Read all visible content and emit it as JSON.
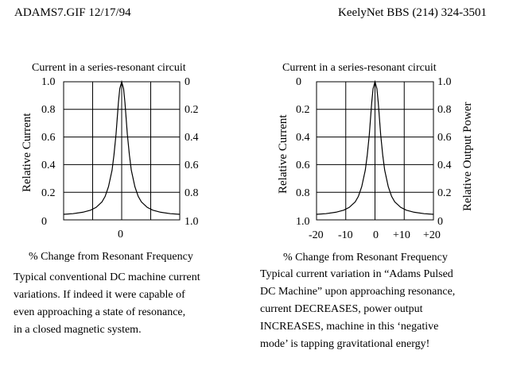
{
  "header": {
    "left": "ADAMS7.GIF  12/17/94",
    "right": "KeelyNet BBS (214) 324-3501"
  },
  "chart_data": [
    {
      "type": "line",
      "title": "Current in a series-resonant circuit",
      "xlabel": "% Change from Resonant Frequency",
      "ylabel": "Relative Current",
      "y_ticks_left": [
        "1.0",
        "0.8",
        "0.6",
        "0.4",
        "0.2",
        "0"
      ],
      "y_ticks_right": [
        "0",
        "0.2",
        "0.4",
        "0.6",
        "0.8",
        "1.0"
      ],
      "x_ticks": [
        "0"
      ],
      "grid": true,
      "xlim": [
        -20,
        20
      ],
      "ylim": [
        0,
        1.0
      ],
      "series": [
        {
          "x": [
            -20,
            -16,
            -12,
            -9,
            -7,
            -5,
            -4,
            -3,
            -2,
            -1.5,
            -1,
            -0.5,
            -0.25,
            0,
            0.25,
            0.5,
            1,
            1.5,
            2,
            3,
            4,
            5,
            7,
            9,
            12,
            16,
            20
          ],
          "values": [
            0.04,
            0.045,
            0.055,
            0.07,
            0.09,
            0.13,
            0.17,
            0.24,
            0.36,
            0.47,
            0.62,
            0.85,
            0.95,
            1.0,
            0.95,
            0.85,
            0.62,
            0.47,
            0.36,
            0.24,
            0.17,
            0.13,
            0.09,
            0.07,
            0.055,
            0.045,
            0.04
          ]
        }
      ],
      "caption": [
        "Typical conventional DC machine current",
        "variations.  If indeed it were capable of",
        "even approaching a state of resonance,",
        "in a closed magnetic system."
      ]
    },
    {
      "type": "line",
      "title": "Current in a series-resonant circuit",
      "xlabel": "% Change from Resonant Frequency",
      "ylabel": "Relative Current",
      "ylabel_right": "Relative Output Power",
      "y_ticks_left": [
        "0",
        "0.2",
        "0.4",
        "0.6",
        "0.8",
        "1.0"
      ],
      "y_ticks_right": [
        "1.0",
        "0.8",
        "0.6",
        "0.4",
        "0.2",
        "0"
      ],
      "x_ticks": [
        "-20",
        "-10",
        "0",
        "+10",
        "+20"
      ],
      "grid": true,
      "xlim": [
        -20,
        20
      ],
      "ylim": [
        0,
        1.0
      ],
      "series": [
        {
          "x": [
            -20,
            -16,
            -12,
            -9,
            -7,
            -5,
            -4,
            -3,
            -2,
            -1.5,
            -1,
            -0.5,
            -0.25,
            0,
            0.25,
            0.5,
            1,
            1.5,
            2,
            3,
            4,
            5,
            7,
            9,
            12,
            16,
            20
          ],
          "values": [
            0.04,
            0.045,
            0.055,
            0.07,
            0.09,
            0.13,
            0.17,
            0.24,
            0.36,
            0.47,
            0.62,
            0.85,
            0.95,
            1.0,
            0.95,
            0.85,
            0.62,
            0.47,
            0.36,
            0.24,
            0.17,
            0.13,
            0.09,
            0.07,
            0.055,
            0.045,
            0.04
          ]
        }
      ],
      "caption": [
        "Typical current variation in “Adams Pulsed",
        "DC Machine” upon approaching resonance,",
        " current DECREASES, power output",
        " INCREASES, machine in this ‘negative",
        " mode’ is tapping gravitational energy!"
      ]
    }
  ]
}
